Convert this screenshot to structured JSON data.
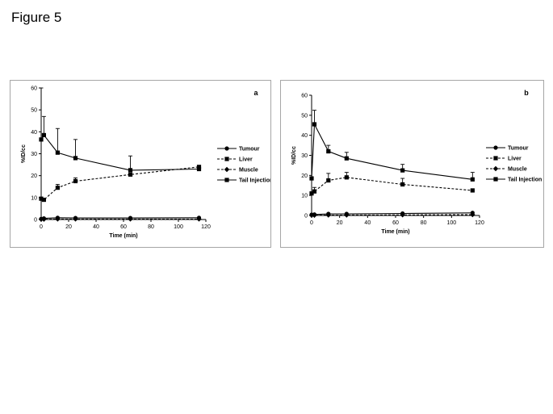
{
  "figure_title": "Figure 5",
  "chart_data": [
    {
      "type": "line",
      "panel_label": "a",
      "xlabel": "Time (min)",
      "ylabel": "%ID/cc",
      "xlim": [
        0,
        120
      ],
      "ylim": [
        0,
        60
      ],
      "xticks": [
        0,
        20,
        40,
        60,
        80,
        100,
        120
      ],
      "yticks": [
        0,
        10,
        20,
        30,
        40,
        50,
        60
      ],
      "grid": false,
      "legend_position": "right",
      "series": [
        {
          "name": "Tumour",
          "marker": "circle",
          "dash": "solid",
          "x": [
            0,
            2,
            12,
            25,
            65,
            115
          ],
          "y": [
            0.3,
            0.5,
            0.8,
            0.7,
            0.7,
            0.8
          ],
          "err": [
            0,
            0,
            0,
            0,
            0,
            0
          ]
        },
        {
          "name": "Liver",
          "marker": "square",
          "dash": "dashed",
          "x": [
            0,
            2,
            12,
            25,
            65,
            115
          ],
          "y": [
            9.5,
            9,
            14.5,
            17.5,
            20.5,
            24
          ],
          "err": [
            0,
            0,
            1.5,
            1.5,
            0.5,
            0.5
          ]
        },
        {
          "name": "Muscle",
          "marker": "diamond",
          "dash": "dashed",
          "x": [
            0,
            2,
            12,
            25,
            65,
            115
          ],
          "y": [
            0.1,
            0.1,
            0.2,
            0.2,
            0.2,
            0.2
          ],
          "err": [
            0,
            0,
            0,
            0,
            0,
            0
          ]
        },
        {
          "name": "Tail Injection",
          "marker": "square",
          "dash": "solid",
          "x": [
            0,
            2,
            12,
            25,
            65,
            115
          ],
          "y": [
            36.5,
            38.5,
            30.5,
            28,
            22.5,
            23
          ],
          "err": [
            23.5,
            8.5,
            11,
            8.5,
            6.5,
            0
          ]
        }
      ]
    },
    {
      "type": "line",
      "panel_label": "b",
      "xlabel": "Time (min)",
      "ylabel": "%ID/cc",
      "xlim": [
        0,
        120
      ],
      "ylim": [
        0,
        60
      ],
      "xticks": [
        0,
        20,
        40,
        60,
        80,
        100,
        120
      ],
      "yticks": [
        0,
        10,
        20,
        30,
        40,
        50,
        60
      ],
      "grid": false,
      "legend_position": "right",
      "series": [
        {
          "name": "Tumour",
          "marker": "circle",
          "dash": "solid",
          "x": [
            0,
            2,
            12,
            25,
            65,
            115
          ],
          "y": [
            0.4,
            0.5,
            0.8,
            0.8,
            1.0,
            1.3
          ],
          "err": [
            0,
            0,
            0,
            0,
            0,
            0
          ]
        },
        {
          "name": "Liver",
          "marker": "square",
          "dash": "dashed",
          "x": [
            0,
            2,
            12,
            25,
            65,
            115
          ],
          "y": [
            11,
            12,
            17.5,
            19,
            15.5,
            12.5
          ],
          "err": [
            0,
            2,
            3.5,
            2.5,
            3,
            0
          ]
        },
        {
          "name": "Muscle",
          "marker": "diamond",
          "dash": "dashed",
          "x": [
            0,
            2,
            12,
            25,
            65,
            115
          ],
          "y": [
            0.1,
            0.1,
            0.2,
            0.2,
            0.3,
            0.4
          ],
          "err": [
            0,
            0,
            0,
            0,
            0,
            0
          ]
        },
        {
          "name": "Tail Injection",
          "marker": "square",
          "dash": "solid",
          "x": [
            0,
            2,
            12,
            25,
            65,
            115
          ],
          "y": [
            18.5,
            45.5,
            32,
            28.5,
            22.5,
            18
          ],
          "err": [
            0,
            7,
            3,
            3,
            3,
            3.5
          ]
        }
      ]
    }
  ]
}
